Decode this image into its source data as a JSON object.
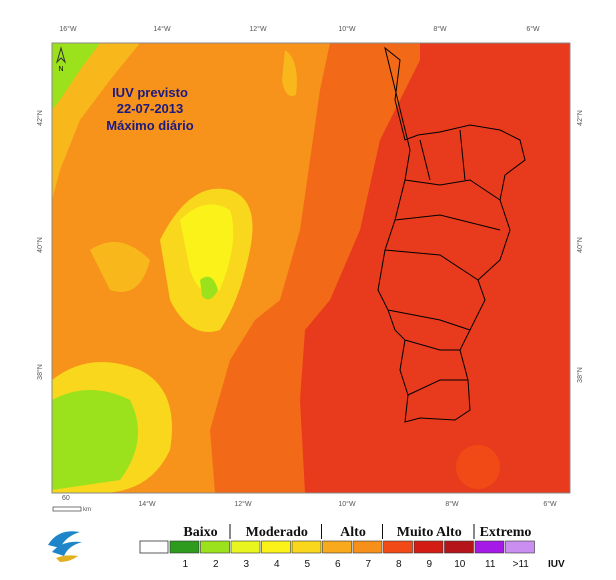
{
  "title": [
    "IUV previsto",
    "22-07-2013",
    "Máximo diário"
  ],
  "top_axis": [
    "16°W",
    "14°W",
    "12°W",
    "10°W",
    "8°W",
    "6°W"
  ],
  "bottom_axis": [
    "14°W",
    "12°W",
    "10°W",
    "8°W",
    "6°W"
  ],
  "left_axis": [
    "42°N",
    "40°N",
    "38°N"
  ],
  "right_axis": [
    "42°N",
    "40°N",
    "38°N"
  ],
  "north": "N",
  "scale": {
    "value": "60",
    "unit": "km"
  },
  "legend": {
    "groups": [
      "Baixo",
      "Moderado",
      "Alto",
      "Muito Alto",
      "Extremo"
    ],
    "classes": [
      {
        "label": "1",
        "color": "#2e9a1e"
      },
      {
        "label": "2",
        "color": "#9be21c"
      },
      {
        "label": "3",
        "color": "#e8f51e"
      },
      {
        "label": "4",
        "color": "#fbf21a"
      },
      {
        "label": "5",
        "color": "#f8d71c"
      },
      {
        "label": "6",
        "color": "#f8a91c"
      },
      {
        "label": "7",
        "color": "#f7901a"
      },
      {
        "label": "8",
        "color": "#f24a16"
      },
      {
        "label": "9",
        "color": "#d21c14"
      },
      {
        "label": "10",
        "color": "#b5151a"
      },
      {
        "label": "11",
        "color": "#a51ae6"
      },
      {
        "label": ">11",
        "color": "#c98ef0"
      }
    ],
    "unit": "IUV"
  }
}
